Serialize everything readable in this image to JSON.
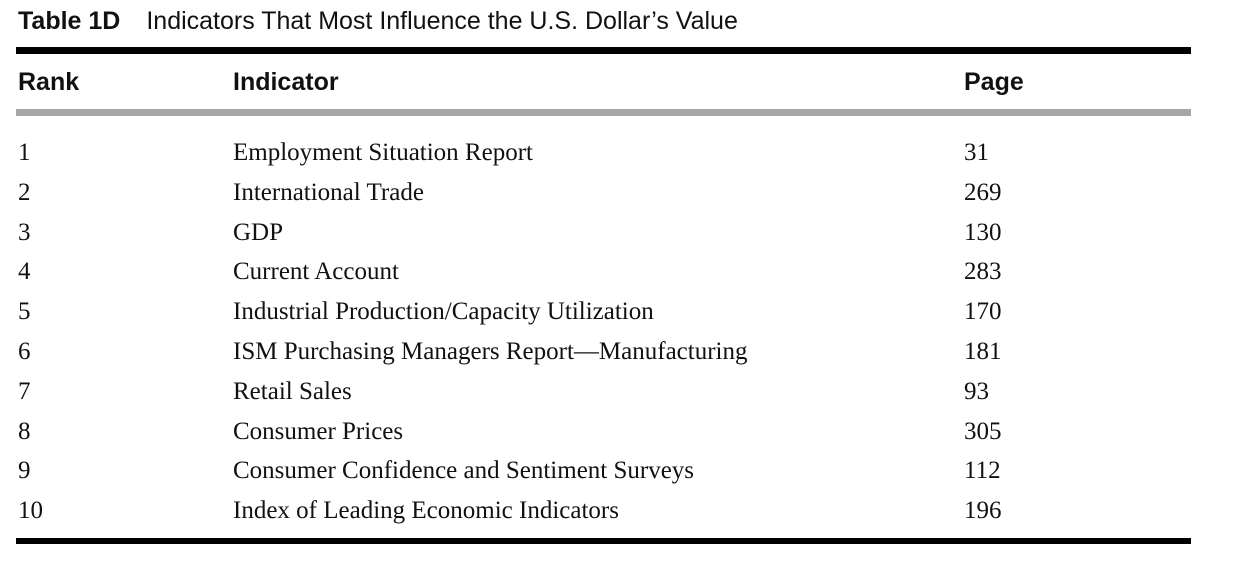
{
  "caption": {
    "label": "Table 1D",
    "title": "Indicators That Most Influence the U.S. Dollar’s Value"
  },
  "table": {
    "headers": {
      "rank": "Rank",
      "indicator": "Indicator",
      "page": "Page"
    },
    "rows": [
      {
        "rank": "1",
        "indicator": "Employment Situation Report",
        "page": "31"
      },
      {
        "rank": "2",
        "indicator": "International Trade",
        "page": "269"
      },
      {
        "rank": "3",
        "indicator": "GDP",
        "page": "130"
      },
      {
        "rank": "4",
        "indicator": "Current Account",
        "page": "283"
      },
      {
        "rank": "5",
        "indicator": "Industrial Production/Capacity Utilization",
        "page": "170"
      },
      {
        "rank": "6",
        "indicator": "ISM Purchasing Managers Report—Manufacturing",
        "page": "181"
      },
      {
        "rank": "7",
        "indicator": "Retail Sales",
        "page": "93"
      },
      {
        "rank": "8",
        "indicator": "Consumer Prices",
        "page": "305"
      },
      {
        "rank": "9",
        "indicator": "Consumer Confidence and Sentiment Surveys",
        "page": "112"
      },
      {
        "rank": "10",
        "indicator": "Index of Leading Economic Indicators",
        "page": "196"
      }
    ]
  }
}
